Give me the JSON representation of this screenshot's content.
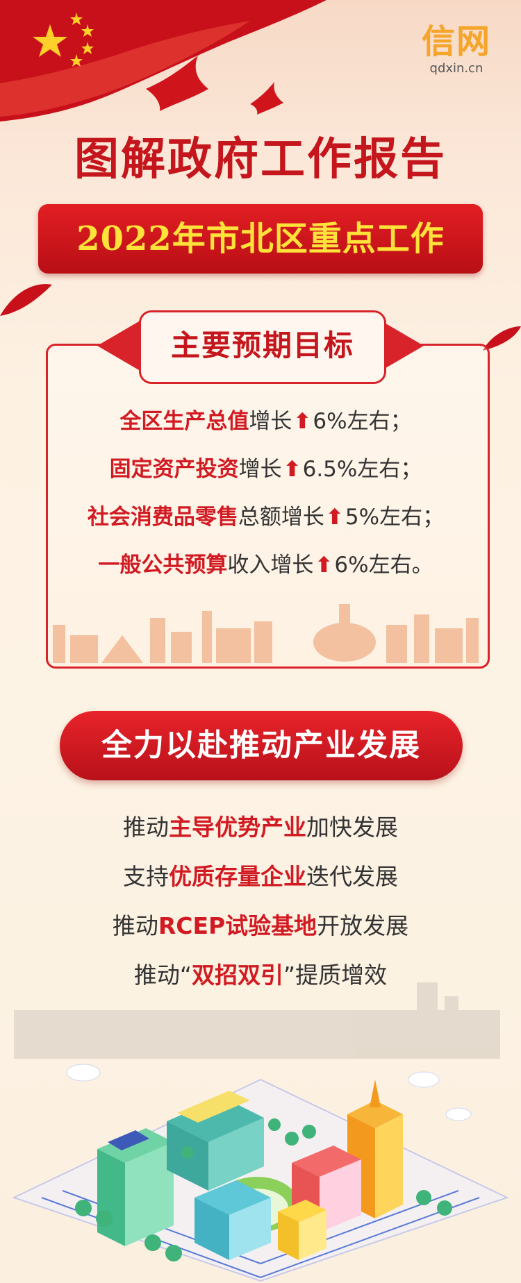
{
  "logo": {
    "main": "信网",
    "sub": "qdxin.cn"
  },
  "title": "图解政府工作报告",
  "subtitle": "2022年市北区重点工作",
  "targets": {
    "heading": "主要预期目标",
    "items": [
      {
        "highlight": "全区生产总值",
        "rest": "增长",
        "value": "6%左右；"
      },
      {
        "highlight": "固定资产投资",
        "rest": "增长",
        "value": "6.5%左右；"
      },
      {
        "highlight": "社会消费品零售",
        "rest": "总额增长",
        "value": "5%左右；"
      },
      {
        "highlight": "一般公共预算",
        "rest": "收入增长",
        "value": "6%左右。"
      }
    ],
    "arrow": "⬆"
  },
  "industry": {
    "heading": "全力以赴推动产业发展",
    "items": [
      {
        "pre": "推动",
        "highlight": "主导优势产业",
        "post": "加快发展"
      },
      {
        "pre": "支持",
        "highlight": "优质存量企业",
        "post": "迭代发展"
      },
      {
        "pre": "推动",
        "highlight": "RCEP试验基地",
        "post": "开放发展"
      },
      {
        "pre": "推动“",
        "highlight": "双招双引",
        "post": "”提质增效"
      }
    ]
  },
  "colors": {
    "primary_red": "#c4161c",
    "accent_yellow": "#ffe23a",
    "logo_orange": "#f4a52a"
  }
}
